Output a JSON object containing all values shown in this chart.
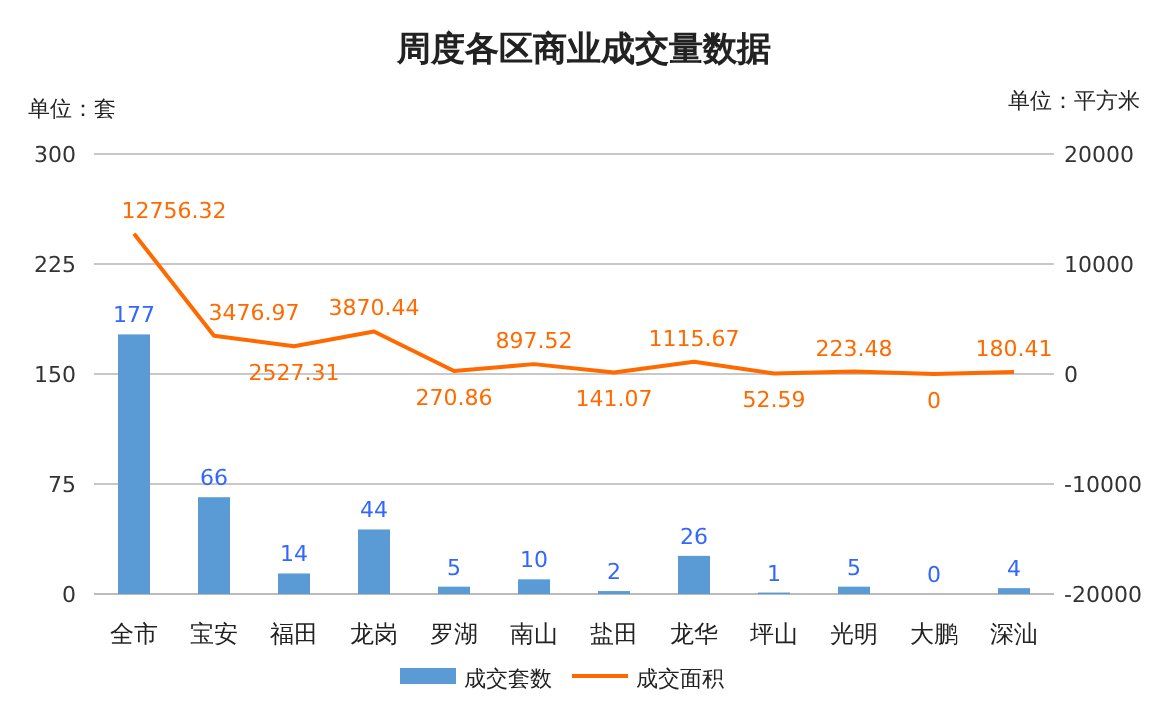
{
  "chart_data": {
    "type": "bar",
    "title": "周度各区商业成交量数据",
    "ylabel": "单位：套",
    "y2label": "单位：平方米",
    "categories": [
      "全市",
      "宝安",
      "福田",
      "龙岗",
      "罗湖",
      "南山",
      "盐田",
      "龙华",
      "坪山",
      "光明",
      "大鹏",
      "深汕"
    ],
    "series": [
      {
        "name": "成交套数",
        "color": "#5b9bd5",
        "values": [
          177,
          66,
          14,
          44,
          5,
          10,
          2,
          26,
          1,
          5,
          0,
          4
        ]
      },
      {
        "name": "成交面积",
        "type": "line",
        "axis": "y2",
        "color": "#ff6a00",
        "values": [
          12756.32,
          3476.97,
          2527.31,
          3870.44,
          270.86,
          897.52,
          141.07,
          1115.67,
          52.59,
          223.48,
          0,
          180.41
        ]
      }
    ],
    "ylim": [
      0,
      300
    ],
    "yticks": [
      0,
      75,
      150,
      225,
      300
    ],
    "y2lim": [
      -20000,
      20000
    ],
    "y2ticks": [
      -20000,
      -10000,
      0,
      10000,
      20000
    ],
    "grid": "y",
    "legend": "bottom",
    "data_labels": true
  }
}
